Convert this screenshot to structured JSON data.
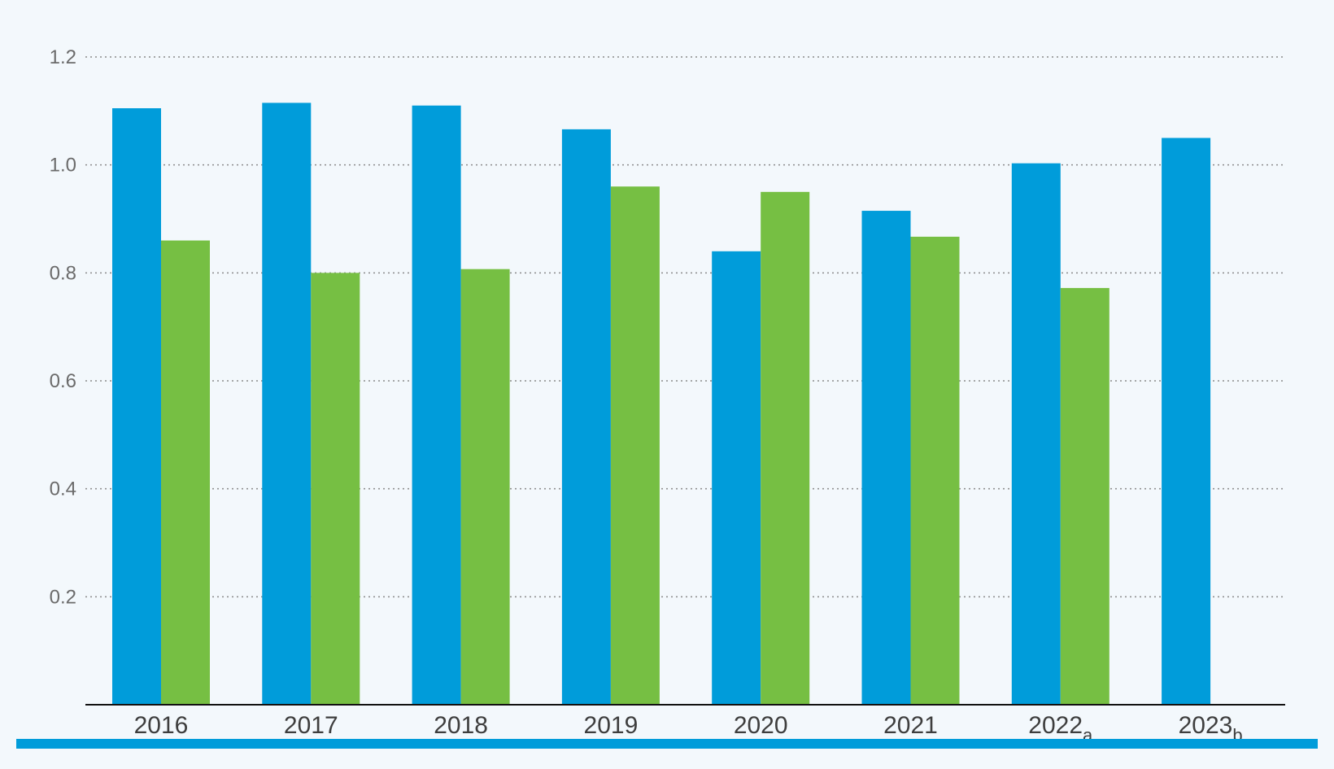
{
  "colors": {
    "background": "#f3f8fc",
    "series_primary": "#009cda",
    "series_secondary": "#76bf43",
    "bottom_rule": "#009cda"
  },
  "chart_data": {
    "type": "bar",
    "title": "",
    "xlabel": "",
    "ylabel": "",
    "ylim": [
      0,
      1.2
    ],
    "yticks": [
      0.2,
      0.4,
      0.6,
      0.8,
      1.0,
      1.2
    ],
    "ytick_labels": [
      "0.2",
      "0.4",
      "0.6",
      "0.8",
      "1.0",
      "1.2"
    ],
    "grid": true,
    "legend": "none",
    "categories": [
      {
        "label": "2016",
        "note": ""
      },
      {
        "label": "2017",
        "note": ""
      },
      {
        "label": "2018",
        "note": ""
      },
      {
        "label": "2019",
        "note": ""
      },
      {
        "label": "2020",
        "note": ""
      },
      {
        "label": "2021",
        "note": ""
      },
      {
        "label": "2022",
        "note": "a"
      },
      {
        "label": "2023",
        "note": "b"
      }
    ],
    "series": [
      {
        "color": "#009cda",
        "values": [
          1.105,
          1.115,
          1.11,
          1.066,
          0.84,
          0.915,
          1.003,
          1.05
        ]
      },
      {
        "color": "#76bf43",
        "values": [
          0.86,
          0.8,
          0.807,
          0.96,
          0.95,
          0.867,
          0.772,
          null
        ]
      }
    ]
  }
}
